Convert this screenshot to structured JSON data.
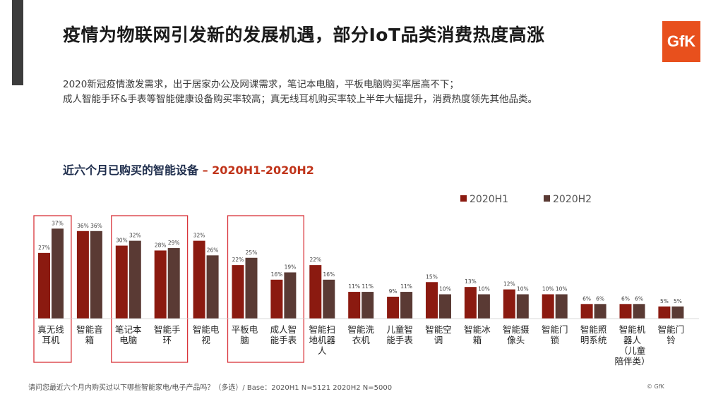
{
  "header": {
    "title": "疫情为物联网引发新的发展机遇，部分IoT品类消费热度高涨",
    "logo_text": "GfK",
    "subtitle_line1": "2020新冠疫情激发需求，出于居家办公及网课需求，笔记本电脑，平板电脑购买率居高不下；",
    "subtitle_line2": "成人智能手环&手表等智能健康设备购买率较高；真无线耳机购买率较上半年大幅提升，消费热度领先其他品类。"
  },
  "chart_title": {
    "main": "近六个月已购买的智能设备",
    "accent": " – 2020H1-2020H2"
  },
  "colors": {
    "h1": "#8b1a10",
    "h2": "#5a3a34",
    "highlight_box": "#d9343a",
    "logo": "#e8501d"
  },
  "chart_data": {
    "type": "bar",
    "title": "近六个月已购买的智能设备 – 2020H1-2020H2",
    "categories": [
      [
        "真无线",
        "耳机"
      ],
      [
        "智能音",
        "箱"
      ],
      [
        "笔记本",
        "电脑"
      ],
      [
        "智能手",
        "环"
      ],
      [
        "智能电",
        "视"
      ],
      [
        "平板电",
        "脑"
      ],
      [
        "成人智",
        "能手表"
      ],
      [
        "智能扫",
        "地机器",
        "人"
      ],
      [
        "智能洗",
        "衣机"
      ],
      [
        "儿童智",
        "能手表"
      ],
      [
        "智能空",
        "调"
      ],
      [
        "智能冰",
        "箱"
      ],
      [
        "智能摄",
        "像头"
      ],
      [
        "智能门",
        "锁"
      ],
      [
        "智能照",
        "明系统"
      ],
      [
        "智能机",
        "器人",
        "（儿童",
        "陪伴类）"
      ],
      [
        "智能门",
        "铃"
      ]
    ],
    "series": [
      {
        "name": "2020H1",
        "values": [
          27,
          36,
          30,
          28,
          32,
          22,
          16,
          22,
          11,
          9,
          15,
          13,
          12,
          10,
          6,
          6,
          5
        ],
        "labels": [
          "27%",
          "36%",
          "30%",
          "28%",
          "32%",
          "22%",
          "16%",
          "22%",
          "11%",
          "9%",
          "15%",
          "13%",
          "12%",
          "10%",
          "6%",
          "6%",
          "5%"
        ]
      },
      {
        "name": "2020H2",
        "values": [
          37,
          36,
          32,
          29,
          26,
          25,
          19,
          16,
          11,
          11,
          10,
          10,
          10,
          10,
          6,
          6,
          5
        ],
        "labels": [
          "37%",
          "36%",
          "32%",
          "29%",
          "26%",
          "25%",
          "19%",
          "16%",
          "11%",
          "11%",
          "10%",
          "10%",
          "10%",
          "10%",
          "6%",
          "6%",
          "5%"
        ]
      }
    ],
    "highlighted": [
      0,
      2,
      3,
      5,
      6
    ],
    "ylim": [
      0,
      40
    ],
    "grid": false,
    "legend": "top-right",
    "unit": "%"
  },
  "footer": {
    "note": "请问您最近六个月内购买过以下哪些智能家电/电子产品吗？（多选）/ Base：2020H1 N=5121 2020H2 N=5000",
    "copyright": "© GfK"
  }
}
